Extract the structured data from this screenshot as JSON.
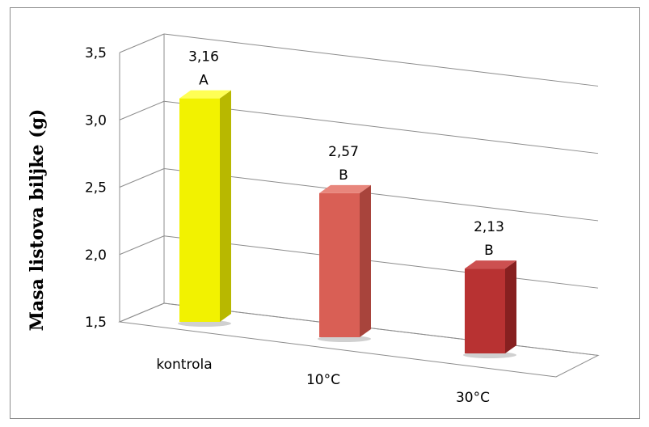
{
  "chart_data": {
    "type": "bar",
    "title": "",
    "xlabel": "",
    "ylabel": "Masa listova biljke (g)",
    "ylim": [
      1.5,
      3.5
    ],
    "yticks": [
      "1,5",
      "2,0",
      "2,5",
      "3,0",
      "3,5"
    ],
    "grid": true,
    "categories": [
      "kontrola",
      "10°C",
      "30°C"
    ],
    "values": [
      3.16,
      2.57,
      2.13
    ],
    "value_labels": [
      "3,16",
      "2,57",
      "2,13"
    ],
    "significance_letters": [
      "A",
      "B",
      "B"
    ],
    "colors": [
      "#f2f200",
      "#d95f55",
      "#b83232"
    ]
  }
}
